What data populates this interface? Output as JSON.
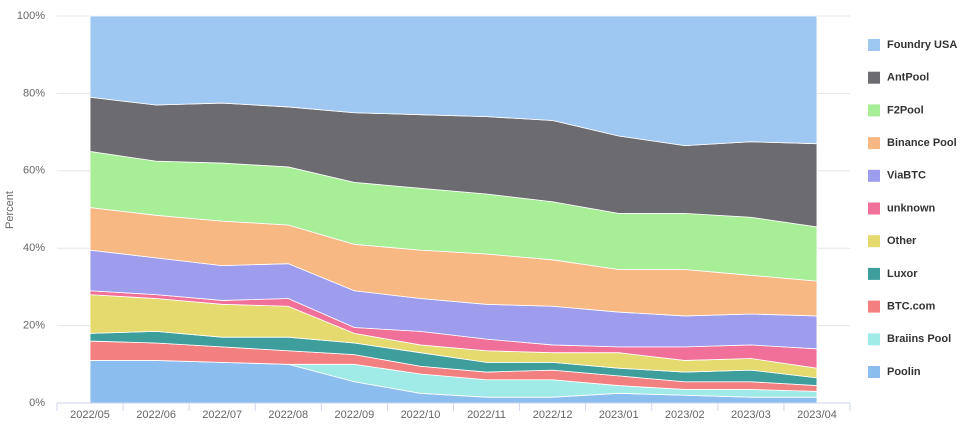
{
  "chart_data": {
    "type": "stacked_area_percent",
    "y_label": "Percent",
    "categories": [
      "2022/05",
      "2022/06",
      "2022/07",
      "2022/08",
      "2022/09",
      "2022/10",
      "2022/11",
      "2022/12",
      "2023/01",
      "2023/02",
      "2023/03",
      "2023/04"
    ],
    "ylim": [
      0,
      100
    ],
    "yticks": [
      {
        "value": 0,
        "label": "0%"
      },
      {
        "value": 20,
        "label": "20%"
      },
      {
        "value": 40,
        "label": "40%"
      },
      {
        "value": 60,
        "label": "60%"
      },
      {
        "value": 80,
        "label": "80%"
      },
      {
        "value": 100,
        "label": "100%"
      }
    ],
    "grid": true,
    "legend": "right",
    "series": [
      {
        "name": "Foundry USA",
        "color": "#9ec8f2",
        "values": [
          21,
          23,
          22.5,
          23.5,
          25,
          25.5,
          26,
          27,
          31,
          33.5,
          32.5,
          33
        ]
      },
      {
        "name": "AntPool",
        "color": "#6b6b70",
        "values": [
          14,
          14.5,
          15.5,
          15.5,
          18,
          19,
          20,
          21,
          20,
          17.5,
          19.5,
          21.5
        ]
      },
      {
        "name": "F2Pool",
        "color": "#a8ee96",
        "values": [
          14.5,
          14,
          15,
          15,
          16,
          16,
          15.5,
          15,
          14.5,
          14.5,
          15,
          14
        ]
      },
      {
        "name": "Binance Pool",
        "color": "#f7b884",
        "values": [
          11,
          11,
          11.5,
          10,
          12,
          12.5,
          13,
          12,
          11,
          12,
          10,
          9
        ]
      },
      {
        "name": "ViaBTC",
        "color": "#9e9ced",
        "values": [
          10.5,
          9.5,
          9,
          9,
          9.5,
          8.5,
          9,
          10,
          9,
          8,
          8,
          8.5
        ]
      },
      {
        "name": "unknown",
        "color": "#f0709a",
        "values": [
          1,
          1,
          1,
          2,
          1.5,
          3.5,
          3,
          2,
          1.5,
          3.5,
          3.5,
          5
        ]
      },
      {
        "name": "Other",
        "color": "#e4da6e",
        "values": [
          10,
          8.5,
          8.5,
          8,
          2.5,
          2,
          3,
          2.5,
          4,
          3,
          3,
          2.5
        ]
      },
      {
        "name": "Luxor",
        "color": "#3e9e9c",
        "values": [
          2,
          3,
          2.5,
          3.5,
          3,
          3.5,
          2.5,
          2,
          2,
          2.5,
          3,
          2
        ]
      },
      {
        "name": "BTC.com",
        "color": "#f28080",
        "values": [
          5,
          4.5,
          4,
          3.5,
          2.5,
          2,
          2,
          2.5,
          2.5,
          2,
          2,
          1.5
        ]
      },
      {
        "name": "Braiins Pool",
        "color": "#a0ebe8",
        "values": [
          0,
          0,
          0,
          0,
          4.5,
          5,
          4.5,
          4.5,
          2,
          1.5,
          2,
          1.5
        ]
      },
      {
        "name": "Poolin",
        "color": "#8cbdef",
        "values": [
          11,
          11,
          10.5,
          10,
          5.5,
          2.5,
          1.5,
          1.5,
          2.5,
          2,
          1.5,
          1.5
        ]
      }
    ]
  }
}
